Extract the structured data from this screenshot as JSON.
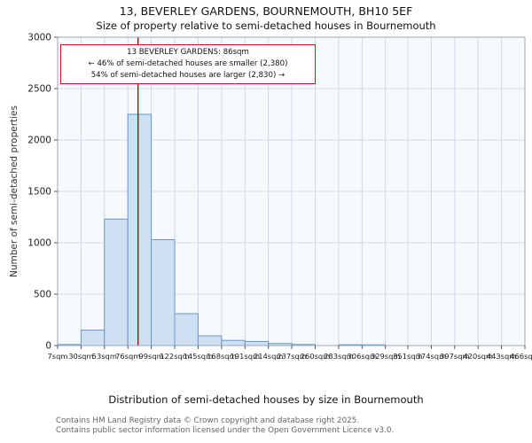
{
  "chart_data": {
    "type": "bar",
    "title": "13, BEVERLEY GARDENS, BOURNEMOUTH, BH10 5EF",
    "subtitle": "Size of property relative to semi-detached houses in Bournemouth",
    "xlabel": "Distribution of semi-detached houses by size in Bournemouth",
    "ylabel": "Number of semi-detached properties",
    "bin_edges": [
      7,
      30,
      53,
      76,
      99,
      122,
      145,
      168,
      191,
      214,
      237,
      260,
      283,
      306,
      329,
      351,
      374,
      397,
      420,
      443,
      466
    ],
    "bin_labels": [
      "7sqm",
      "30sqm",
      "53sqm",
      "76sqm",
      "99sqm",
      "122sqm",
      "145sqm",
      "168sqm",
      "191sqm",
      "214sqm",
      "237sqm",
      "260sqm",
      "283sqm",
      "306sqm",
      "329sqm",
      "351sqm",
      "374sqm",
      "397sqm",
      "420sqm",
      "443sqm",
      "466sqm"
    ],
    "values": [
      10,
      150,
      1230,
      2250,
      1030,
      310,
      95,
      50,
      40,
      20,
      10,
      0,
      8,
      7,
      0,
      0,
      0,
      0,
      0,
      0
    ],
    "yticks": [
      0,
      500,
      1000,
      1500,
      2000,
      2500,
      3000
    ],
    "ylim": [
      0,
      3000
    ],
    "grid": true,
    "plot_bg": "#f7fafd",
    "grid_color": "#ccd9ea",
    "spine_color": "#98a6b8",
    "bar_fill": "#cfe0f3",
    "bar_stroke": "#6a96ca",
    "marker": {
      "value_sqm": 86,
      "color": "#991111"
    },
    "annotation": {
      "line1": "13 BEVERLEY GARDENS: 86sqm",
      "line2": "← 46% of semi-detached houses are smaller (2,380)",
      "line3": "54% of semi-detached houses are larger (2,830) →",
      "border_color": "#cc1111"
    }
  },
  "footer": {
    "line1": "Contains HM Land Registry data © Crown copyright and database right 2025.",
    "line2": "Contains public sector information licensed under the Open Government Licence v3.0."
  }
}
